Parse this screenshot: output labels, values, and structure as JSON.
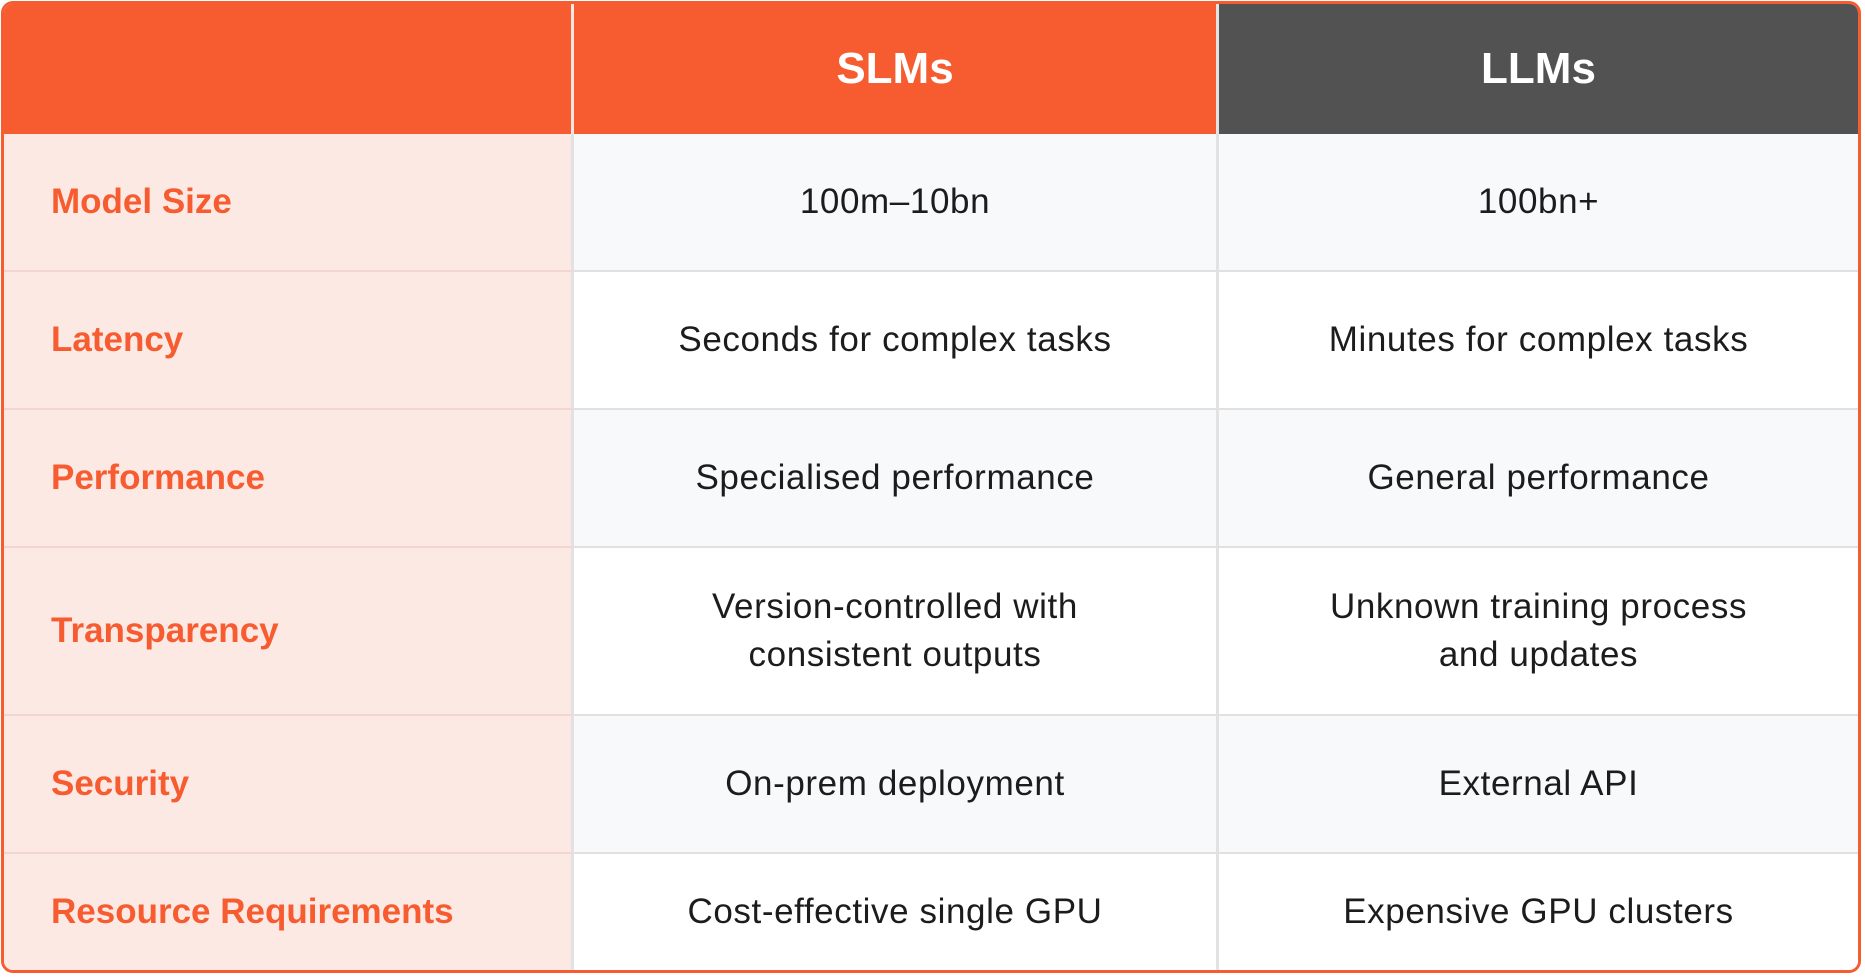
{
  "header": {
    "corner_label": "",
    "slm_title": "SLMs",
    "llm_title": "LLMs"
  },
  "rows": [
    {
      "label": "Model Size",
      "slm": "100m–10bn",
      "llm": "100bn+"
    },
    {
      "label": "Latency",
      "slm": "Seconds for complex tasks",
      "llm": "Minutes for complex tasks"
    },
    {
      "label": "Performance",
      "slm": "Specialised performance",
      "llm": "General performance"
    },
    {
      "label": "Transparency",
      "slm": "Version-controlled with consistent outputs",
      "llm": "Unknown training process and updates"
    },
    {
      "label": "Security",
      "slm": "On-prem deployment",
      "llm": "External API"
    },
    {
      "label": "Resource Requirements",
      "slm": "Cost-effective single GPU",
      "llm": "Expensive GPU clusters"
    }
  ],
  "colors": {
    "accent": "#f65c30",
    "dark_header": "#525252",
    "label_background": "#fde9e4",
    "alt_row": "#f8f9fa"
  }
}
